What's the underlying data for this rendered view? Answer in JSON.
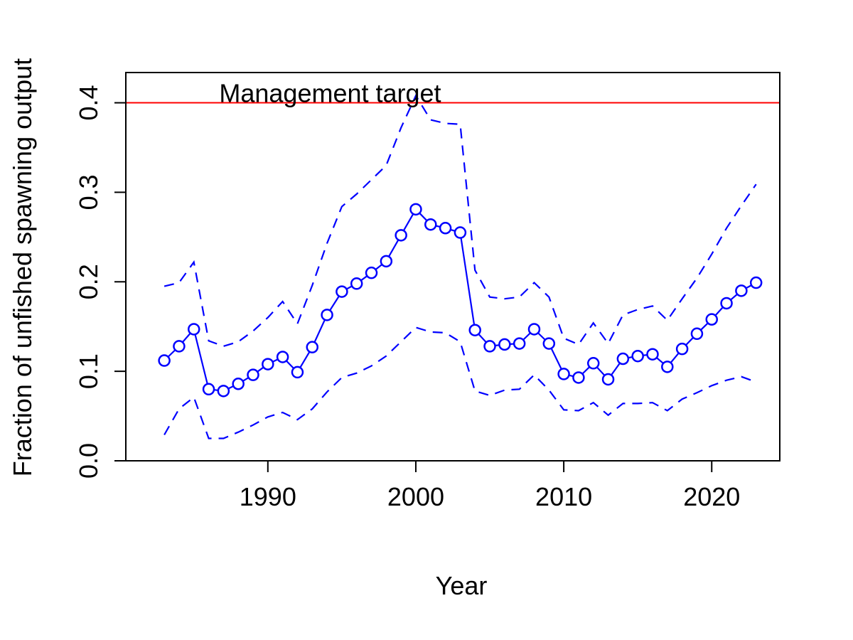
{
  "chart_data": {
    "type": "line",
    "title": "",
    "xlabel": "Year",
    "ylabel": "Fraction of unfished spawning output",
    "xlim": [
      1980.4,
      2024.6
    ],
    "ylim": [
      0,
      0.4338
    ],
    "x_ticks": [
      1990,
      2000,
      2010,
      2020
    ],
    "x_tick_labels": [
      "1990",
      "2000",
      "2010",
      "2020"
    ],
    "y_ticks": [
      0,
      0.1,
      0.2,
      0.3,
      0.4
    ],
    "y_tick_labels": [
      "0.0",
      "0.1",
      "0.2",
      "0.3",
      "0.4"
    ],
    "grid": false,
    "reference_line": {
      "y": 0.4,
      "label": "Management target",
      "color": "#ff0000",
      "label_x": 1987
    },
    "colors": {
      "series": "#0000ff",
      "reference": "#ff0000",
      "axis": "#000000"
    },
    "x": [
      1983,
      1984,
      1985,
      1986,
      1987,
      1988,
      1989,
      1990,
      1991,
      1992,
      1993,
      1994,
      1995,
      1996,
      1997,
      1998,
      1999,
      2000,
      2001,
      2002,
      2003,
      2004,
      2005,
      2006,
      2007,
      2008,
      2009,
      2010,
      2011,
      2012,
      2013,
      2014,
      2015,
      2016,
      2017,
      2018,
      2019,
      2020,
      2021,
      2022,
      2023
    ],
    "series": [
      {
        "role": "estimate",
        "style": "line-with-circles",
        "values": [
          0.112,
          0.128,
          0.147,
          0.08,
          0.078,
          0.086,
          0.096,
          0.108,
          0.116,
          0.099,
          0.127,
          0.163,
          0.189,
          0.198,
          0.21,
          0.223,
          0.252,
          0.281,
          0.264,
          0.26,
          0.255,
          0.146,
          0.128,
          0.13,
          0.131,
          0.147,
          0.131,
          0.097,
          0.093,
          0.109,
          0.091,
          0.114,
          0.117,
          0.119,
          0.105,
          0.125,
          0.142,
          0.158,
          0.176,
          0.19,
          0.199
        ]
      },
      {
        "role": "upper-interval",
        "style": "dashed",
        "values": [
          0.195,
          0.199,
          0.222,
          0.134,
          0.128,
          0.133,
          0.145,
          0.16,
          0.178,
          0.153,
          0.196,
          0.243,
          0.284,
          0.298,
          0.314,
          0.33,
          0.372,
          0.408,
          0.381,
          0.377,
          0.376,
          0.213,
          0.183,
          0.181,
          0.183,
          0.199,
          0.183,
          0.137,
          0.13,
          0.154,
          0.131,
          0.163,
          0.169,
          0.173,
          0.157,
          0.181,
          0.204,
          0.231,
          0.26,
          0.285,
          0.309
        ]
      },
      {
        "role": "lower-interval",
        "style": "dashed",
        "values": [
          0.029,
          0.058,
          0.071,
          0.025,
          0.025,
          0.032,
          0.04,
          0.049,
          0.054,
          0.046,
          0.058,
          0.077,
          0.093,
          0.098,
          0.106,
          0.117,
          0.133,
          0.149,
          0.144,
          0.143,
          0.133,
          0.078,
          0.073,
          0.079,
          0.08,
          0.096,
          0.079,
          0.057,
          0.056,
          0.065,
          0.051,
          0.064,
          0.064,
          0.065,
          0.056,
          0.069,
          0.076,
          0.084,
          0.09,
          0.094,
          0.088
        ]
      }
    ]
  }
}
